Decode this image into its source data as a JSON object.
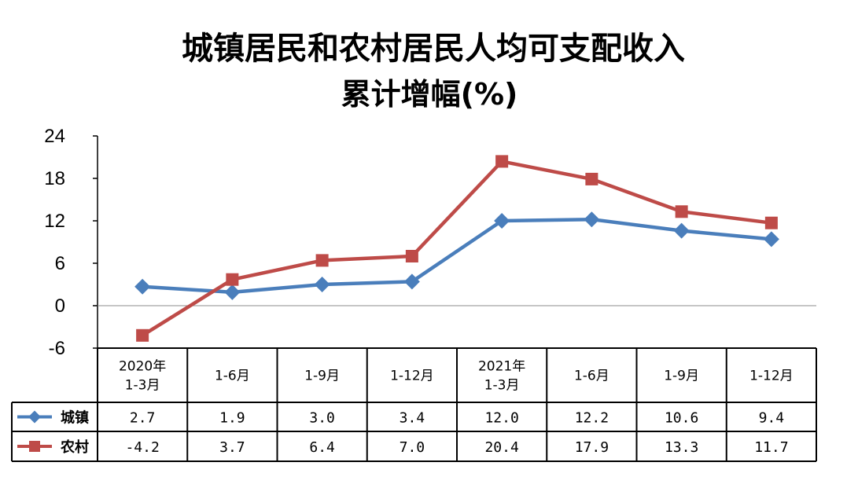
{
  "chart_data": {
    "type": "line",
    "title_line1": "城镇居民和农村居民人均可支配收入",
    "title_line2": "累计增幅(%)",
    "categories": [
      [
        "2020年",
        "1-3月"
      ],
      [
        "1-6月"
      ],
      [
        "1-9月"
      ],
      [
        "1-12月"
      ],
      [
        "2021年",
        "1-3月"
      ],
      [
        "1-6月"
      ],
      [
        "1-9月"
      ],
      [
        "1-12月"
      ]
    ],
    "y_ticks": [
      "24",
      "18",
      "12",
      "6",
      "0",
      "-6"
    ],
    "ylim": [
      -6,
      24
    ],
    "grid": false,
    "legend": "data-table",
    "series": [
      {
        "name": "城镇",
        "color": "#4a7ebb",
        "marker": "diamond",
        "values": [
          2.7,
          1.9,
          3.0,
          3.4,
          12.0,
          12.2,
          10.6,
          9.4
        ],
        "labels": [
          "2.7",
          "1.9",
          "3.0",
          "3.4",
          "12.0",
          "12.2",
          "10.6",
          "9.4"
        ]
      },
      {
        "name": "农村",
        "color": "#be4b48",
        "marker": "square",
        "values": [
          -4.2,
          3.7,
          6.4,
          7.0,
          20.4,
          17.9,
          13.3,
          11.7
        ],
        "labels": [
          "-4.2",
          "3.7",
          "6.4",
          "7.0",
          "20.4",
          "17.9",
          "13.3",
          "11.7"
        ]
      }
    ]
  }
}
